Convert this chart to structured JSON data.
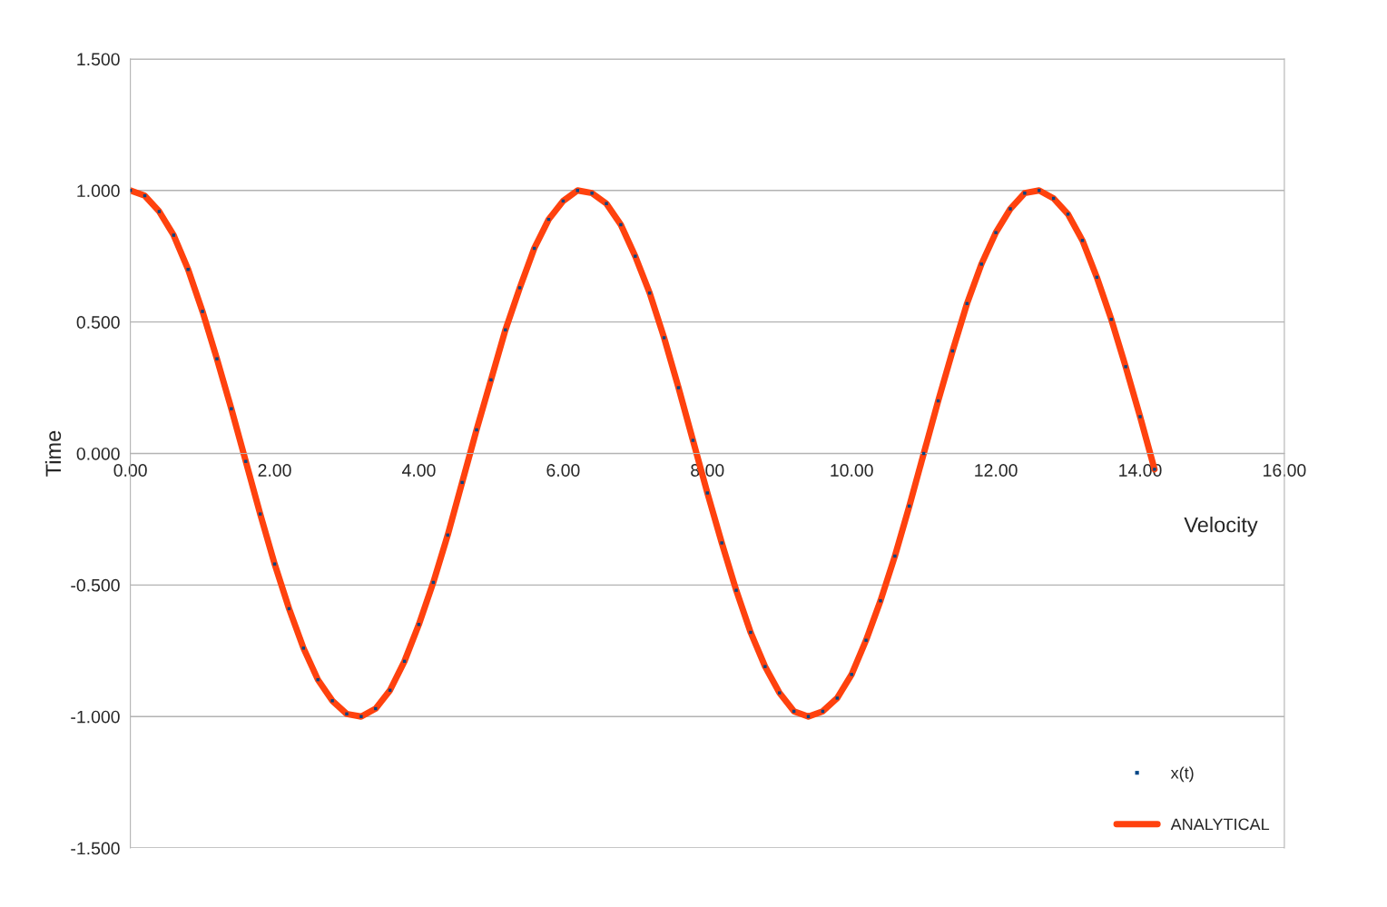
{
  "chart_data": {
    "type": "line",
    "xlabel": "Velocity",
    "ylabel": "Time",
    "x": [
      0,
      0.2,
      0.4,
      0.6,
      0.8,
      1.0,
      1.2,
      1.4,
      1.6,
      1.8,
      2.0,
      2.2,
      2.4,
      2.6,
      2.8,
      3.0,
      3.2,
      3.4,
      3.6,
      3.8,
      4.0,
      4.2,
      4.4,
      4.6,
      4.8,
      5.0,
      5.2,
      5.4,
      5.6,
      5.8,
      6.0,
      6.2,
      6.4,
      6.6,
      6.8,
      7.0,
      7.2,
      7.4,
      7.6,
      7.8,
      8.0,
      8.2,
      8.4,
      8.6,
      8.8,
      9.0,
      9.2,
      9.4,
      9.6,
      9.8,
      10.0,
      10.2,
      10.4,
      10.6,
      10.8,
      11.0,
      11.2,
      11.4,
      11.6,
      11.8,
      12.0,
      12.2,
      12.4,
      12.6,
      12.8,
      13.0,
      13.2,
      13.4,
      13.6,
      13.8,
      14.0,
      14.2
    ],
    "series": [
      {
        "name": "x(t)",
        "type": "scatter",
        "marker": "square",
        "color": "#004586",
        "values": [
          1.0,
          0.98,
          0.92,
          0.83,
          0.7,
          0.54,
          0.36,
          0.17,
          -0.03,
          -0.23,
          -0.42,
          -0.59,
          -0.74,
          -0.86,
          -0.94,
          -0.99,
          -1.0,
          -0.97,
          -0.9,
          -0.79,
          -0.65,
          -0.49,
          -0.31,
          -0.11,
          0.09,
          0.28,
          0.47,
          0.63,
          0.78,
          0.89,
          0.96,
          1.0,
          0.99,
          0.95,
          0.87,
          0.75,
          0.61,
          0.44,
          0.25,
          0.05,
          -0.15,
          -0.34,
          -0.52,
          -0.68,
          -0.81,
          -0.91,
          -0.98,
          -1.0,
          -0.98,
          -0.93,
          -0.84,
          -0.71,
          -0.56,
          -0.39,
          -0.2,
          0.0,
          0.2,
          0.39,
          0.57,
          0.72,
          0.84,
          0.93,
          0.99,
          1.0,
          0.97,
          0.91,
          0.81,
          0.67,
          0.51,
          0.33,
          0.14,
          -0.06
        ]
      },
      {
        "name": "ANALYTICAL",
        "line_style": "solid",
        "color": "#ff420e",
        "values": [
          1.0,
          0.98,
          0.92,
          0.83,
          0.7,
          0.54,
          0.36,
          0.17,
          -0.03,
          -0.23,
          -0.42,
          -0.59,
          -0.74,
          -0.86,
          -0.94,
          -0.99,
          -1.0,
          -0.97,
          -0.9,
          -0.79,
          -0.65,
          -0.49,
          -0.31,
          -0.11,
          0.09,
          0.28,
          0.47,
          0.63,
          0.78,
          0.89,
          0.96,
          1.0,
          0.99,
          0.95,
          0.87,
          0.75,
          0.61,
          0.44,
          0.25,
          0.05,
          -0.15,
          -0.34,
          -0.52,
          -0.68,
          -0.81,
          -0.91,
          -0.98,
          -1.0,
          -0.98,
          -0.93,
          -0.84,
          -0.71,
          -0.56,
          -0.39,
          -0.2,
          0.0,
          0.2,
          0.39,
          0.57,
          0.72,
          0.84,
          0.93,
          0.99,
          1.0,
          0.97,
          0.91,
          0.81,
          0.67,
          0.51,
          0.33,
          0.14,
          -0.06
        ]
      }
    ],
    "xlim": [
      0,
      16
    ],
    "ylim": [
      -1.5,
      1.5
    ],
    "xticks": [
      {
        "value": 0,
        "label": "0.00"
      },
      {
        "value": 2,
        "label": "2.00"
      },
      {
        "value": 4,
        "label": "4.00"
      },
      {
        "value": 6,
        "label": "6.00"
      },
      {
        "value": 8,
        "label": "8.00"
      },
      {
        "value": 10,
        "label": "10.00"
      },
      {
        "value": 12,
        "label": "12.00"
      },
      {
        "value": 14,
        "label": "14.00"
      },
      {
        "value": 16,
        "label": "16.00"
      }
    ],
    "yticks": [
      {
        "value": -1.5,
        "label": "-1.500"
      },
      {
        "value": -1,
        "label": "-1.000"
      },
      {
        "value": -0.5,
        "label": "-0.500"
      },
      {
        "value": 0,
        "label": "0.000"
      },
      {
        "value": 0.5,
        "label": "0.500"
      },
      {
        "value": 1,
        "label": "1.000"
      },
      {
        "value": 1.5,
        "label": "1.500"
      }
    ],
    "grid": "y",
    "legend": "bottom right"
  }
}
